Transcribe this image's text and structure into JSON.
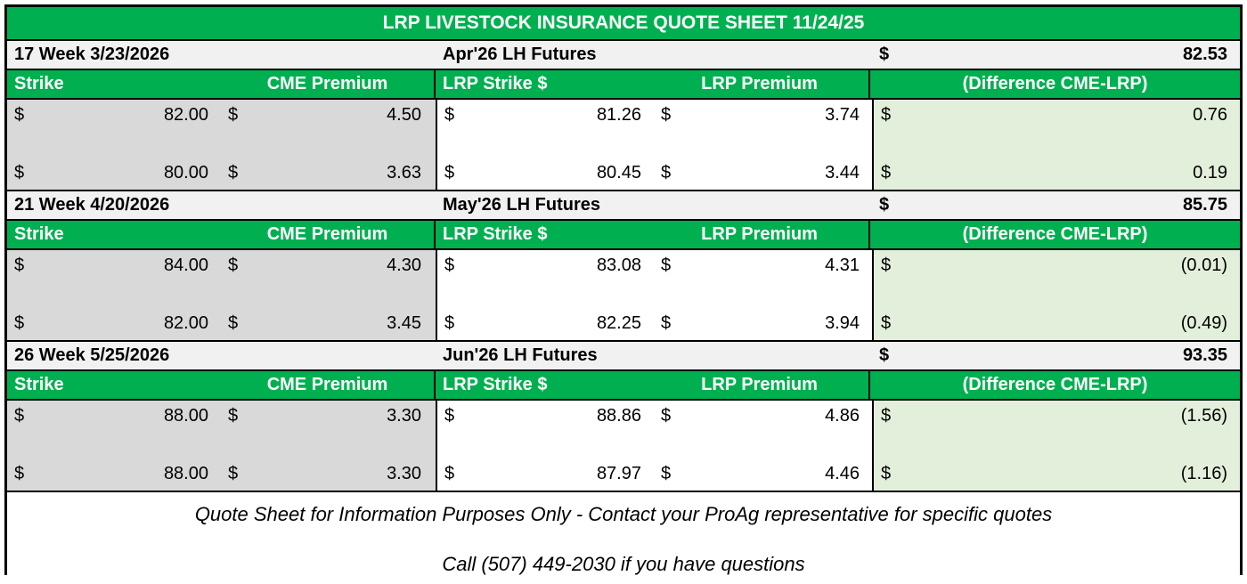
{
  "currency_symbol": "$",
  "title": "LRP LIVESTOCK INSURANCE QUOTE SHEET 11/24/25",
  "columns": [
    "Strike",
    "CME Premium",
    "LRP Strike $",
    "LRP Premium",
    "(Difference CME-LRP)"
  ],
  "sections": [
    {
      "week_label": "17 Week 3/23/2026",
      "futures_label": "Apr'26 LH Futures",
      "futures_value": "82.53",
      "rows": [
        {
          "strike": "82.00",
          "cme_premium": "4.50",
          "lrp_strike": "81.26",
          "lrp_premium": "3.74",
          "difference": "0.76"
        },
        {
          "strike": "80.00",
          "cme_premium": "3.63",
          "lrp_strike": "80.45",
          "lrp_premium": "3.44",
          "difference": "0.19"
        }
      ]
    },
    {
      "week_label": "21 Week 4/20/2026",
      "futures_label": "May'26 LH Futures",
      "futures_value": "85.75",
      "rows": [
        {
          "strike": "84.00",
          "cme_premium": "4.30",
          "lrp_strike": "83.08",
          "lrp_premium": "4.31",
          "difference": "(0.01)"
        },
        {
          "strike": "82.00",
          "cme_premium": "3.45",
          "lrp_strike": "82.25",
          "lrp_premium": "3.94",
          "difference": "(0.49)"
        }
      ]
    },
    {
      "week_label": "26 Week 5/25/2026",
      "futures_label": "Jun'26 LH Futures",
      "futures_value": "93.35",
      "rows": [
        {
          "strike": "88.00",
          "cme_premium": "3.30",
          "lrp_strike": "88.86",
          "lrp_premium": "4.86",
          "difference": "(1.56)"
        },
        {
          "strike": "88.00",
          "cme_premium": "3.30",
          "lrp_strike": "87.97",
          "lrp_premium": "4.46",
          "difference": "(1.16)"
        }
      ]
    }
  ],
  "footer": {
    "disclaimer": "Quote Sheet for Information Purposes Only - Contact your ProAg representative for specific quotes",
    "contact": "Call (507) 449-2030 if you have questions"
  },
  "colors": {
    "header_green": "#00B050",
    "strike_cme_bg": "#D9D9D9",
    "lrp_bg": "#FFFFFF",
    "difference_bg": "#E2EFDA",
    "futures_row_bg": "#F1F1F1",
    "border": "#000000"
  }
}
